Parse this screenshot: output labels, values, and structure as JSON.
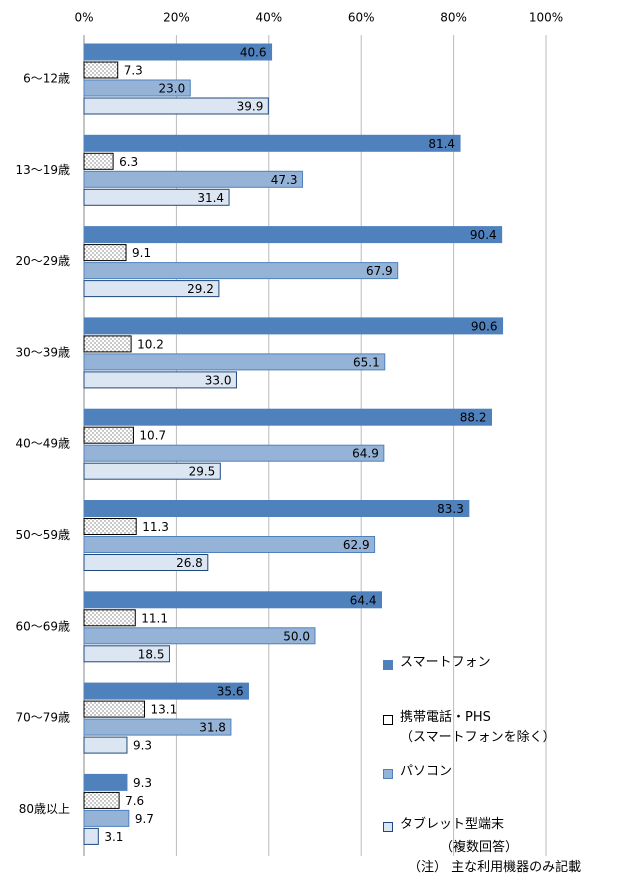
{
  "chart_data": {
    "type": "bar",
    "orientation": "horizontal",
    "categories": [
      "6〜12歳",
      "13〜19歳",
      "20〜29歳",
      "30〜39歳",
      "40〜49歳",
      "50〜59歳",
      "60〜69歳",
      "70〜79歳",
      "80歳以上"
    ],
    "series": [
      {
        "name": "スマートフォン",
        "color": "#4f81bd",
        "values": [
          40.6,
          81.4,
          90.4,
          90.6,
          88.2,
          83.3,
          64.4,
          35.6,
          9.3
        ],
        "value_labels": [
          "40.6",
          "81.4",
          "90.4",
          "90.6",
          "88.2",
          "83.3",
          "64.4",
          "35.6",
          "9.3"
        ]
      },
      {
        "name": "携帯電話・PHS\n（スマートフォンを除く）",
        "color": "#ffffff",
        "values": [
          7.3,
          6.3,
          9.1,
          10.2,
          10.7,
          11.3,
          11.1,
          13.1,
          7.6
        ],
        "value_labels": [
          "7.3",
          "6.3",
          "9.1",
          "10.2",
          "10.7",
          "11.3",
          "11.1",
          "13.1",
          "7.6"
        ]
      },
      {
        "name": "パソコン",
        "color": "#95b3d7",
        "values": [
          23.0,
          47.3,
          67.9,
          65.1,
          64.9,
          62.9,
          50.0,
          31.8,
          9.7
        ],
        "value_labels": [
          "23.0",
          "47.3",
          "67.9",
          "65.1",
          "64.9",
          "62.9",
          "50.0",
          "31.8",
          "9.7"
        ]
      },
      {
        "name": "タブレット型端末",
        "color": "#dce6f2",
        "values": [
          39.9,
          31.4,
          29.2,
          33.0,
          29.5,
          26.8,
          18.5,
          9.3,
          3.1
        ],
        "value_labels": [
          "39.9",
          "31.4",
          "29.2",
          "33.0",
          "29.5",
          "26.8",
          "18.5",
          "9.3",
          "3.1"
        ]
      }
    ],
    "xlim": [
      0,
      100
    ],
    "xticks": [
      {
        "value": 0,
        "label": "0%"
      },
      {
        "value": 20,
        "label": "20%"
      },
      {
        "value": 40,
        "label": "40%"
      },
      {
        "value": 60,
        "label": "60%"
      },
      {
        "value": 80,
        "label": "80%"
      },
      {
        "value": 100,
        "label": "100%"
      }
    ],
    "grid": true,
    "legend_note": "（複数回答）",
    "note": "（注） 主な利用機器のみ記載"
  }
}
